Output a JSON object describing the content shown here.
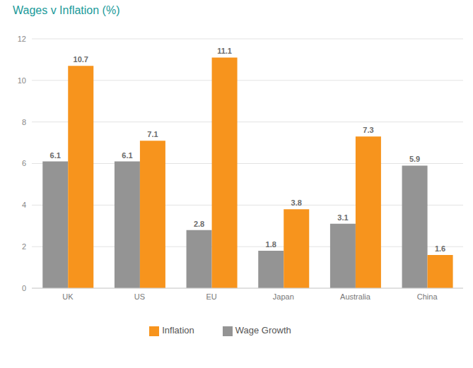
{
  "chart_data": {
    "type": "bar",
    "title": "Wages v Inflation (%)",
    "categories": [
      "UK",
      "US",
      "EU",
      "Japan",
      "Australia",
      "China"
    ],
    "series": [
      {
        "name": "Wage Growth",
        "color": "#949494",
        "values": [
          6.1,
          6.1,
          2.8,
          1.8,
          3.1,
          5.9
        ]
      },
      {
        "name": "Inflation",
        "color": "#f7941d",
        "values": [
          10.7,
          7.1,
          11.1,
          3.8,
          7.3,
          1.6
        ]
      }
    ],
    "ylim": [
      0,
      12
    ],
    "yticks": [
      0,
      2,
      4,
      6,
      8,
      10,
      12
    ],
    "grid": true,
    "legend": "bottom",
    "data_labels": true
  }
}
